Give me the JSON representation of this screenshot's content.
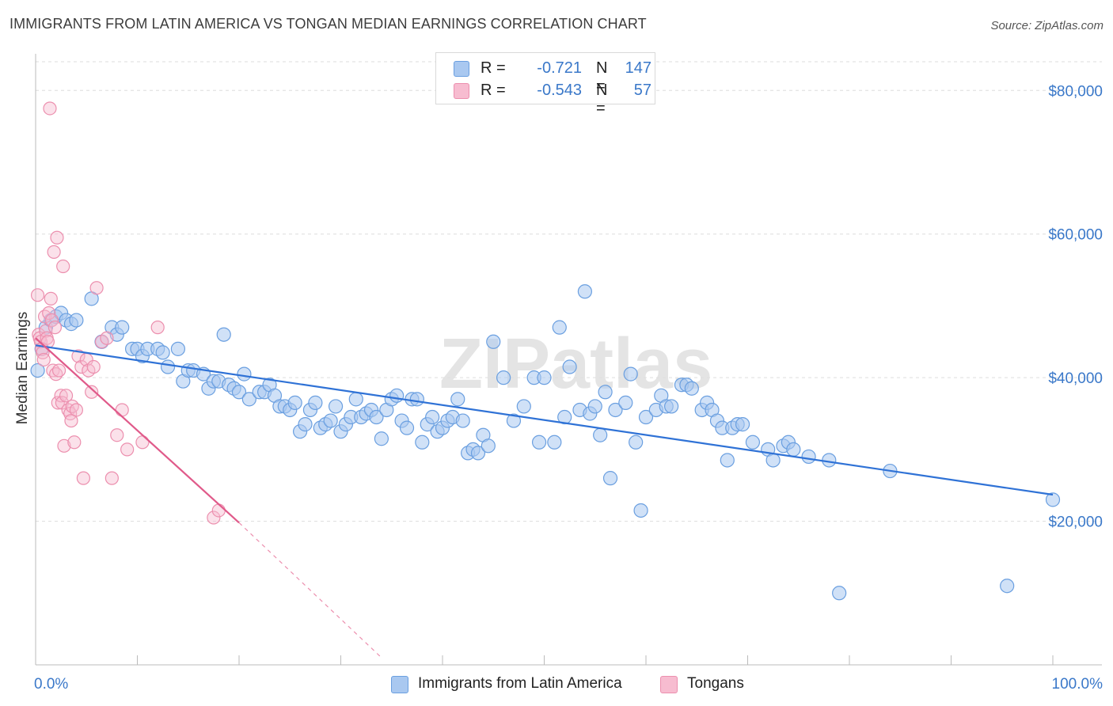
{
  "header": {
    "title": "IMMIGRANTS FROM LATIN AMERICA VS TONGAN MEDIAN EARNINGS CORRELATION CHART",
    "source": "Source: ZipAtlas.com"
  },
  "watermark": "ZIPatlas",
  "legend": {
    "rows": [
      {
        "r_label": "R =",
        "r_value": "-0.721",
        "n_label": "N =",
        "n_value": "147"
      },
      {
        "r_label": "R =",
        "r_value": "-0.543",
        "n_label": "N =",
        "n_value": "57"
      }
    ]
  },
  "colors": {
    "blue_fill": "#a9c8f0",
    "blue_stroke": "#6a9fe0",
    "blue_line": "#2f72d6",
    "pink_fill": "#f7bcd0",
    "pink_stroke": "#ec8fae",
    "pink_line": "#e05a8a",
    "tick_label": "#3a78c9",
    "grid": "#dddddd"
  },
  "chart_data": {
    "type": "scatter",
    "title": "IMMIGRANTS FROM LATIN AMERICA VS TONGAN MEDIAN EARNINGS CORRELATION CHART",
    "xlabel": "",
    "ylabel": "Median Earnings",
    "xlim": [
      0,
      100
    ],
    "ylim": [
      0,
      84000
    ],
    "x_tick_labels": [
      "0.0%",
      "100.0%"
    ],
    "y_ticks": [
      20000,
      40000,
      60000,
      80000
    ],
    "y_tick_labels": [
      "$20,000",
      "$40,000",
      "$60,000",
      "$80,000"
    ],
    "grid": "horizontal dashed",
    "legend_position": "top-center",
    "series": [
      {
        "name": "Immigrants from Latin America",
        "color": "#6a9fe0",
        "r": -0.721,
        "n": 147,
        "trend": {
          "x": [
            0,
            100
          ],
          "y": [
            44500,
            23700
          ]
        },
        "points": [
          [
            0.2,
            41000
          ],
          [
            0.6,
            44000
          ],
          [
            1,
            47000
          ],
          [
            1.5,
            48000
          ],
          [
            2,
            48500
          ],
          [
            2.5,
            49000
          ],
          [
            3,
            48000
          ],
          [
            3.5,
            47500
          ],
          [
            4,
            48000
          ],
          [
            5.5,
            51000
          ],
          [
            6.5,
            45000
          ],
          [
            7.5,
            47000
          ],
          [
            8,
            46000
          ],
          [
            8.5,
            47000
          ],
          [
            9.5,
            44000
          ],
          [
            10,
            44000
          ],
          [
            10.5,
            43000
          ],
          [
            11,
            44000
          ],
          [
            12,
            44000
          ],
          [
            12.5,
            43500
          ],
          [
            13,
            41500
          ],
          [
            14,
            44000
          ],
          [
            14.5,
            39500
          ],
          [
            15,
            41000
          ],
          [
            15.5,
            41000
          ],
          [
            16.5,
            40500
          ],
          [
            17,
            38500
          ],
          [
            17.5,
            39500
          ],
          [
            18,
            39500
          ],
          [
            18.5,
            46000
          ],
          [
            19,
            39000
          ],
          [
            19.5,
            38500
          ],
          [
            20,
            38000
          ],
          [
            20.5,
            40500
          ],
          [
            21,
            37000
          ],
          [
            22,
            38000
          ],
          [
            22.5,
            38000
          ],
          [
            23,
            39000
          ],
          [
            23.5,
            37500
          ],
          [
            24,
            36000
          ],
          [
            24.5,
            36000
          ],
          [
            25,
            35500
          ],
          [
            25.5,
            36500
          ],
          [
            26,
            32500
          ],
          [
            26.5,
            33500
          ],
          [
            27,
            35500
          ],
          [
            27.5,
            36500
          ],
          [
            28,
            33000
          ],
          [
            28.5,
            33500
          ],
          [
            29,
            34000
          ],
          [
            29.5,
            36000
          ],
          [
            30,
            32500
          ],
          [
            30.5,
            33500
          ],
          [
            31,
            34500
          ],
          [
            31.5,
            37000
          ],
          [
            32,
            34500
          ],
          [
            32.5,
            35000
          ],
          [
            33,
            35500
          ],
          [
            33.5,
            34500
          ],
          [
            34,
            31500
          ],
          [
            34.5,
            35500
          ],
          [
            35,
            37000
          ],
          [
            35.5,
            37500
          ],
          [
            36,
            34000
          ],
          [
            36.5,
            33000
          ],
          [
            37,
            37000
          ],
          [
            37.5,
            37000
          ],
          [
            38,
            31000
          ],
          [
            38.5,
            33500
          ],
          [
            39,
            34500
          ],
          [
            39.5,
            32500
          ],
          [
            40,
            33000
          ],
          [
            40.5,
            34000
          ],
          [
            41,
            34500
          ],
          [
            41.5,
            37000
          ],
          [
            42,
            34000
          ],
          [
            42.5,
            29500
          ],
          [
            43,
            30000
          ],
          [
            43.5,
            29500
          ],
          [
            44,
            32000
          ],
          [
            44.5,
            30500
          ],
          [
            45,
            45000
          ],
          [
            46,
            40000
          ],
          [
            47,
            34000
          ],
          [
            48,
            36000
          ],
          [
            49,
            40000
          ],
          [
            49.5,
            31000
          ],
          [
            50,
            40000
          ],
          [
            51,
            31000
          ],
          [
            51.5,
            47000
          ],
          [
            52,
            34500
          ],
          [
            52.5,
            41500
          ],
          [
            53.5,
            35500
          ],
          [
            54,
            52000
          ],
          [
            54.5,
            35000
          ],
          [
            55,
            36000
          ],
          [
            55.5,
            32000
          ],
          [
            56,
            38000
          ],
          [
            56.5,
            26000
          ],
          [
            57,
            35500
          ],
          [
            58,
            36500
          ],
          [
            58.5,
            40500
          ],
          [
            59,
            31000
          ],
          [
            59.5,
            21500
          ],
          [
            60,
            34500
          ],
          [
            61,
            35500
          ],
          [
            61.5,
            37500
          ],
          [
            62,
            36000
          ],
          [
            62.5,
            36000
          ],
          [
            63.5,
            39000
          ],
          [
            64,
            39000
          ],
          [
            64.5,
            38500
          ],
          [
            65.5,
            35500
          ],
          [
            66,
            36500
          ],
          [
            66.5,
            35500
          ],
          [
            67,
            34000
          ],
          [
            67.5,
            33000
          ],
          [
            68,
            28500
          ],
          [
            68.5,
            33000
          ],
          [
            69,
            33500
          ],
          [
            69.5,
            33500
          ],
          [
            70.5,
            31000
          ],
          [
            72,
            30000
          ],
          [
            72.5,
            28500
          ],
          [
            73.5,
            30500
          ],
          [
            74,
            31000
          ],
          [
            74.5,
            30000
          ],
          [
            76,
            29000
          ],
          [
            78,
            28500
          ],
          [
            79,
            10000
          ],
          [
            84,
            27000
          ],
          [
            95.5,
            11000
          ],
          [
            100,
            23000
          ]
        ]
      },
      {
        "name": "Tongans",
        "color": "#ec8fae",
        "r": -0.543,
        "n": 57,
        "trend": {
          "x": [
            0,
            20
          ],
          "y": [
            45500,
            19800
          ]
        },
        "trend_extension": {
          "x": [
            20,
            34
          ],
          "y": [
            19800,
            1000
          ]
        },
        "points": [
          [
            0.2,
            51500
          ],
          [
            0.3,
            46000
          ],
          [
            0.4,
            45500
          ],
          [
            0.5,
            45000
          ],
          [
            0.6,
            44000
          ],
          [
            0.7,
            43500
          ],
          [
            0.8,
            42500
          ],
          [
            0.9,
            48500
          ],
          [
            1,
            46500
          ],
          [
            1.1,
            45500
          ],
          [
            1.2,
            45000
          ],
          [
            1.3,
            49000
          ],
          [
            1.4,
            77500
          ],
          [
            1.5,
            51000
          ],
          [
            1.6,
            48000
          ],
          [
            1.7,
            41000
          ],
          [
            1.8,
            57500
          ],
          [
            1.9,
            47000
          ],
          [
            2,
            40500
          ],
          [
            2.1,
            59500
          ],
          [
            2.2,
            36500
          ],
          [
            2.3,
            41000
          ],
          [
            2.5,
            37500
          ],
          [
            2.6,
            36500
          ],
          [
            2.7,
            55500
          ],
          [
            2.8,
            30500
          ],
          [
            3,
            37500
          ],
          [
            3.2,
            35500
          ],
          [
            3.4,
            35000
          ],
          [
            3.5,
            34000
          ],
          [
            3.6,
            36000
          ],
          [
            3.8,
            31000
          ],
          [
            4,
            35500
          ],
          [
            4.2,
            43000
          ],
          [
            4.5,
            41500
          ],
          [
            4.7,
            26000
          ],
          [
            5,
            42500
          ],
          [
            5.2,
            41000
          ],
          [
            5.5,
            38000
          ],
          [
            5.7,
            41500
          ],
          [
            6,
            52500
          ],
          [
            6.5,
            45000
          ],
          [
            7,
            45500
          ],
          [
            7.5,
            26000
          ],
          [
            8,
            32000
          ],
          [
            8.5,
            35500
          ],
          [
            9,
            30000
          ],
          [
            10.5,
            31000
          ],
          [
            12,
            47000
          ],
          [
            17.5,
            20500
          ],
          [
            18,
            21500
          ]
        ]
      }
    ]
  },
  "bottom_legend": [
    {
      "label": "Immigrants from Latin America"
    },
    {
      "label": "Tongans"
    }
  ]
}
